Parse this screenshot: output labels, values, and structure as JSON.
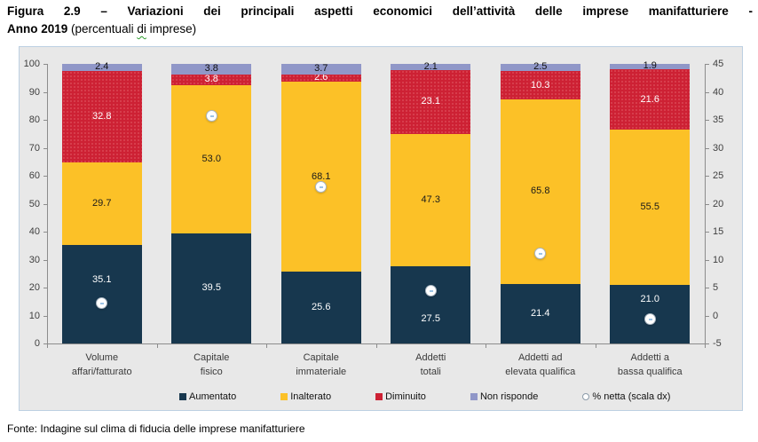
{
  "title": {
    "line1_bold": "Figura 2.9 – Variazioni dei principali aspetti economici dell’attività delle imprese manifatturiere -",
    "line2_bold": "Anno 2019",
    "line2_normal_pre": " (percentuali ",
    "line2_word_underlined": "di",
    "line2_normal_post": " imprese)"
  },
  "footer": {
    "source": "Fonte: Indagine sul clima di fiducia delle imprese manifatturiere"
  },
  "chart_data": {
    "type": "bar",
    "subtype": "stacked-100-with-net-line-markers",
    "title": "Variazioni dei principali aspetti economici dell’attività delle imprese manifatturiere - Anno 2019 (percentuali di imprese)",
    "categories": [
      {
        "line1": "Volume",
        "line2": "affari/fatturato"
      },
      {
        "line1": "Capitale",
        "line2": "fisico"
      },
      {
        "line1": "Capitale",
        "line2": "immateriale"
      },
      {
        "line1": "Addetti",
        "line2": "totali"
      },
      {
        "line1": "Addetti ad",
        "line2": "elevata qualifica"
      },
      {
        "line1": "Addetti a",
        "line2": "bassa qualifica"
      }
    ],
    "series": [
      {
        "name": "Aumentato",
        "color": "#17374e",
        "label_color": "#ffffff",
        "values": [
          35.1,
          39.5,
          25.6,
          27.5,
          21.4,
          21.0
        ]
      },
      {
        "name": "Inalterato",
        "color": "#fcc127",
        "label_color": "#1a1a1a",
        "values": [
          29.7,
          53.0,
          68.1,
          47.3,
          65.8,
          55.5
        ]
      },
      {
        "name": "Diminuito",
        "color": "#cd2134",
        "label_color": "#ffffff",
        "values": [
          32.8,
          3.8,
          2.6,
          23.1,
          10.3,
          21.6
        ]
      },
      {
        "name": "Non risponde",
        "color": "#9097c8",
        "label_color": "#111111",
        "values": [
          2.4,
          3.8,
          3.7,
          2.1,
          2.5,
          1.9
        ]
      }
    ],
    "marker_series": {
      "name": "% netta (scala dx)",
      "axis": "right",
      "marker": "white-circle",
      "values": [
        2.3,
        35.7,
        23.0,
        4.4,
        11.1,
        -0.6
      ]
    },
    "left_axis": {
      "min": 0,
      "max": 100,
      "step": 10
    },
    "right_axis": {
      "min": -5,
      "max": 45,
      "step": 5
    },
    "legend_position": "bottom",
    "grid": false,
    "plot_background": "#e8e8e8"
  }
}
